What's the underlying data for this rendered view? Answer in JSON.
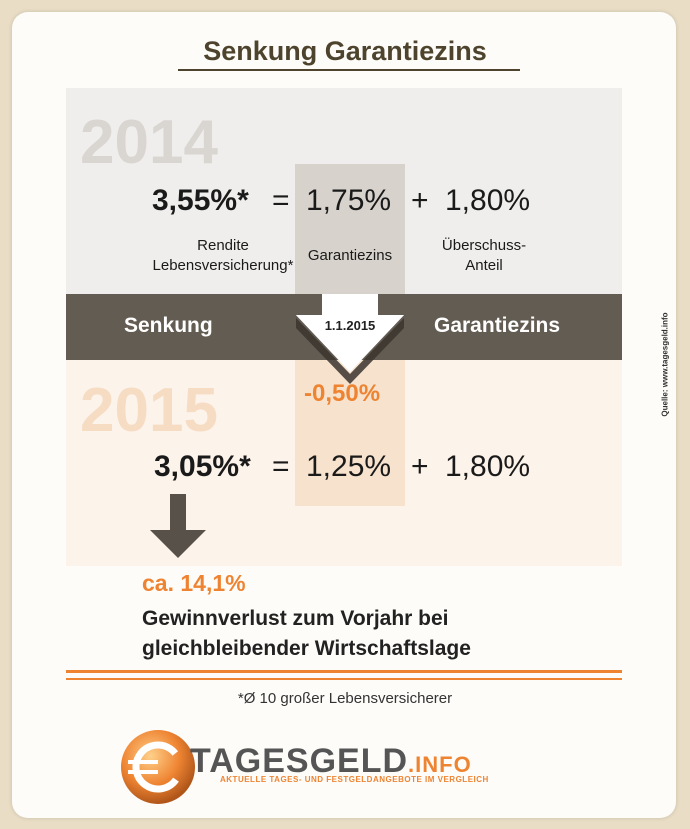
{
  "title": "Senkung Garantiezins",
  "year_top": "2014",
  "year_bottom": "2015",
  "row2014": {
    "total": "3,55%*",
    "eq": "=",
    "guarantee": "1,75%",
    "plus": "+",
    "surplus": "1,80%",
    "label_total": "Rendite Lebensversicherung*",
    "label_guarantee": "Garantiezins",
    "label_surplus": "Überschuss-Anteil"
  },
  "band": {
    "left": "Senkung",
    "right": "Garantiezins",
    "date": "1.1.2015"
  },
  "change": "-0,50%",
  "row2015": {
    "total": "3,05%*",
    "eq": "=",
    "guarantee": "1,25%",
    "plus": "+",
    "surplus": "1,80%"
  },
  "loss_pct": "ca. 14,1%",
  "loss_line1": "Gewinnverlust zum Vorjahr bei",
  "loss_line2": "gleichbleibender Wirtschaftslage",
  "footnote": "*Ø 10 großer Lebensversicherer",
  "source": "Quelle: www.tagesgeld.info",
  "logo_main": "TAGESGELD",
  "logo_suffix": ".INFO",
  "logo_tagline": "AKTUELLE TAGES- UND FESTGELDANGEBOTE IM VERGLEICH",
  "colors": {
    "accent": "#ee8432",
    "band": "#635c53",
    "title": "#4e442e"
  }
}
